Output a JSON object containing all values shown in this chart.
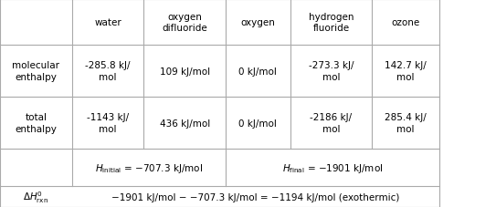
{
  "col_headers": [
    "",
    "water",
    "oxygen\ndifluoride",
    "oxygen",
    "hydrogen\nfluoride",
    "ozone"
  ],
  "row1_label": "molecular\nenthalpy",
  "row1_values": [
    "-285.8 kJ/\nmol",
    "109 kJ/mol",
    "0 kJ/mol",
    "-273.3 kJ/\nmol",
    "142.7 kJ/\nmol"
  ],
  "row2_label": "total\nenthalpy",
  "row2_values": [
    "-1143 kJ/\nmol",
    "436 kJ/mol",
    "0 kJ/mol",
    "-2186 kJ/\nmol",
    "285.4 kJ/\nmol"
  ],
  "row3_col1": "H_initial = −707.3 kJ/mol",
  "row3_col2": "H_final = −1901 kJ/mol",
  "row4_label": "ΔH°_rxn",
  "row4_value": "−1901 kJ/mol − −707.3 kJ/mol = −1194 kJ/mol (exothermic)",
  "bg_color": "#ffffff",
  "text_color": "#000000",
  "grid_color": "#aaaaaa",
  "header_color": "#ffffff",
  "font_size": 7.5
}
